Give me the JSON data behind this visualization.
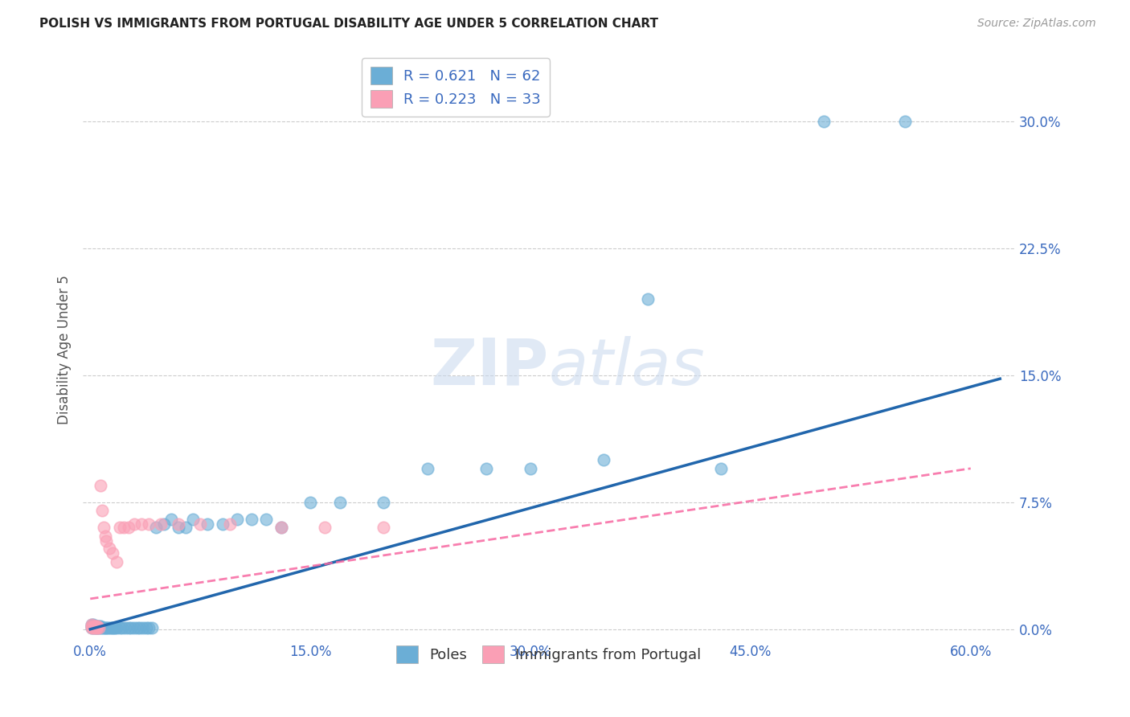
{
  "title": "POLISH VS IMMIGRANTS FROM PORTUGAL DISABILITY AGE UNDER 5 CORRELATION CHART",
  "source": "Source: ZipAtlas.com",
  "ylabel": "Disability Age Under 5",
  "xlabel_ticks": [
    "0.0%",
    "15.0%",
    "30.0%",
    "45.0%",
    "60.0%"
  ],
  "ylabel_ticks": [
    "0.0%",
    "7.5%",
    "15.0%",
    "22.5%",
    "30.0%"
  ],
  "xlim": [
    -0.005,
    0.63
  ],
  "ylim": [
    -0.005,
    0.335
  ],
  "poles_R": 0.621,
  "poles_N": 62,
  "portugal_R": 0.223,
  "portugal_N": 33,
  "poles_color": "#6baed6",
  "portugal_color": "#fa9fb5",
  "poles_line_color": "#2166ac",
  "portugal_line_color": "#f768a1",
  "background_color": "#ffffff",
  "grid_color": "#cccccc",
  "watermark": "ZIPatlas",
  "xtick_vals": [
    0.0,
    0.15,
    0.3,
    0.45,
    0.6
  ],
  "ytick_vals": [
    0.0,
    0.075,
    0.15,
    0.225,
    0.3
  ],
  "poles_x": [
    0.001,
    0.001,
    0.001,
    0.002,
    0.002,
    0.002,
    0.003,
    0.003,
    0.004,
    0.004,
    0.005,
    0.005,
    0.006,
    0.006,
    0.007,
    0.007,
    0.008,
    0.009,
    0.01,
    0.011,
    0.012,
    0.013,
    0.014,
    0.015,
    0.016,
    0.017,
    0.018,
    0.02,
    0.022,
    0.024,
    0.026,
    0.028,
    0.03,
    0.032,
    0.034,
    0.036,
    0.038,
    0.04,
    0.042,
    0.045,
    0.05,
    0.055,
    0.06,
    0.065,
    0.07,
    0.08,
    0.09,
    0.1,
    0.11,
    0.12,
    0.13,
    0.15,
    0.17,
    0.2,
    0.23,
    0.27,
    0.3,
    0.35,
    0.38,
    0.43,
    0.5,
    0.555
  ],
  "poles_y": [
    0.001,
    0.002,
    0.003,
    0.001,
    0.002,
    0.003,
    0.001,
    0.002,
    0.001,
    0.002,
    0.001,
    0.002,
    0.001,
    0.002,
    0.001,
    0.002,
    0.001,
    0.001,
    0.001,
    0.001,
    0.001,
    0.001,
    0.001,
    0.001,
    0.001,
    0.001,
    0.001,
    0.001,
    0.001,
    0.001,
    0.001,
    0.001,
    0.001,
    0.001,
    0.001,
    0.001,
    0.001,
    0.001,
    0.001,
    0.06,
    0.062,
    0.065,
    0.06,
    0.06,
    0.065,
    0.062,
    0.062,
    0.065,
    0.065,
    0.065,
    0.06,
    0.075,
    0.075,
    0.075,
    0.095,
    0.095,
    0.095,
    0.1,
    0.195,
    0.095,
    0.3,
    0.3
  ],
  "portugal_x": [
    0.001,
    0.001,
    0.001,
    0.002,
    0.002,
    0.003,
    0.003,
    0.004,
    0.004,
    0.005,
    0.005,
    0.006,
    0.007,
    0.008,
    0.009,
    0.01,
    0.011,
    0.013,
    0.015,
    0.018,
    0.02,
    0.023,
    0.026,
    0.03,
    0.035,
    0.04,
    0.048,
    0.06,
    0.075,
    0.095,
    0.13,
    0.16,
    0.2
  ],
  "portugal_y": [
    0.001,
    0.002,
    0.003,
    0.001,
    0.002,
    0.001,
    0.002,
    0.001,
    0.002,
    0.001,
    0.002,
    0.001,
    0.085,
    0.07,
    0.06,
    0.055,
    0.052,
    0.048,
    0.045,
    0.04,
    0.06,
    0.06,
    0.06,
    0.062,
    0.062,
    0.062,
    0.062,
    0.062,
    0.062,
    0.062,
    0.06,
    0.06,
    0.06
  ],
  "poles_line_x0": 0.0,
  "poles_line_x1": 0.62,
  "poles_line_y0": 0.0,
  "poles_line_y1": 0.148,
  "portugal_line_x0": 0.0,
  "portugal_line_x1": 0.6,
  "portugal_line_y0": 0.018,
  "portugal_line_y1": 0.095
}
